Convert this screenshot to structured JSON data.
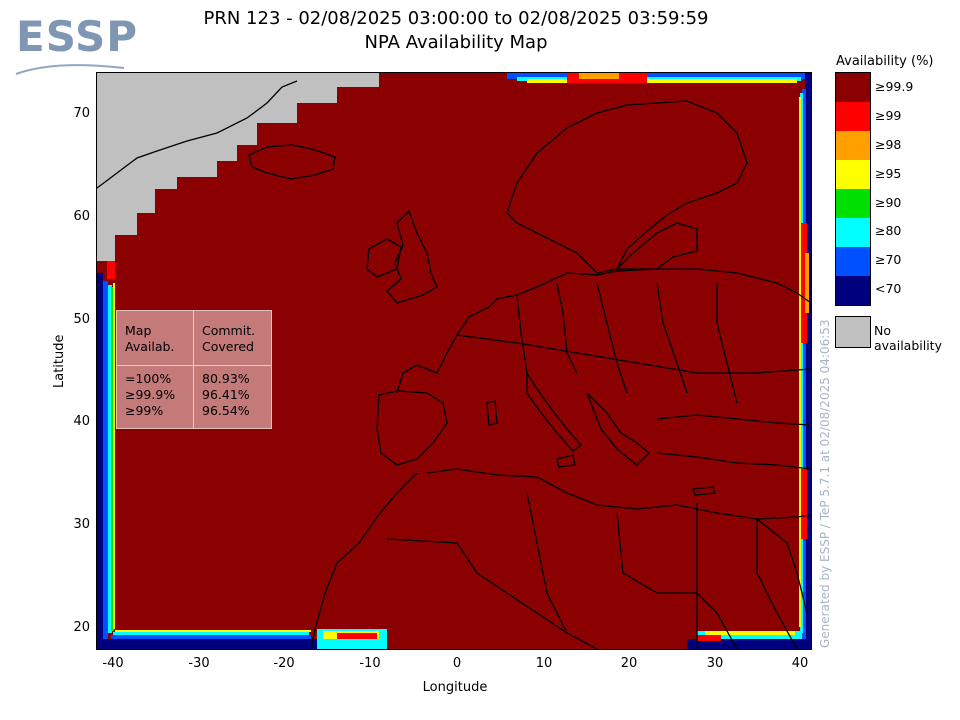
{
  "title": {
    "line1": "PRN 123 - 02/08/2025 03:00:00 to 02/08/2025 03:59:59",
    "line2": "NPA Availability Map"
  },
  "logo": {
    "text": "ESSP"
  },
  "axes": {
    "xlabel": "Longitude",
    "ylabel": "Latitude",
    "x_ticks": [
      "-40",
      "-30",
      "-20",
      "-10",
      "0",
      "10",
      "20",
      "30",
      "40"
    ],
    "y_ticks": [
      "70",
      "60",
      "50",
      "40",
      "30",
      "20"
    ],
    "x_range": [
      -42,
      42
    ],
    "y_range": [
      18,
      74
    ]
  },
  "stats_table": {
    "header": {
      "col1": "Map\nAvailab.",
      "col2": "Commit.\nCovered"
    },
    "rows": {
      "col1": "=100%\n≥99.9%\n≥99%",
      "col2": "80.93%\n96.41%\n96.54%"
    }
  },
  "legend": {
    "title": "Availability (%)",
    "items": [
      {
        "label": "≥99.9",
        "color": "#8b0000"
      },
      {
        "label": "≥99",
        "color": "#ff0000"
      },
      {
        "label": "≥98",
        "color": "#ffa000"
      },
      {
        "label": "≥95",
        "color": "#ffff00"
      },
      {
        "label": "≥90",
        "color": "#00e000"
      },
      {
        "label": "≥80",
        "color": "#00ffff"
      },
      {
        "label": "≥70",
        "color": "#0050ff"
      },
      {
        "label": "<70",
        "color": "#00007f"
      }
    ],
    "no_availability": {
      "label": "No availability",
      "color": "#c0c0c0"
    }
  },
  "footer": {
    "generated_by": "Generated by ESSP / TeP 5.7.1 at 02/08/2025 04:06:53"
  }
}
